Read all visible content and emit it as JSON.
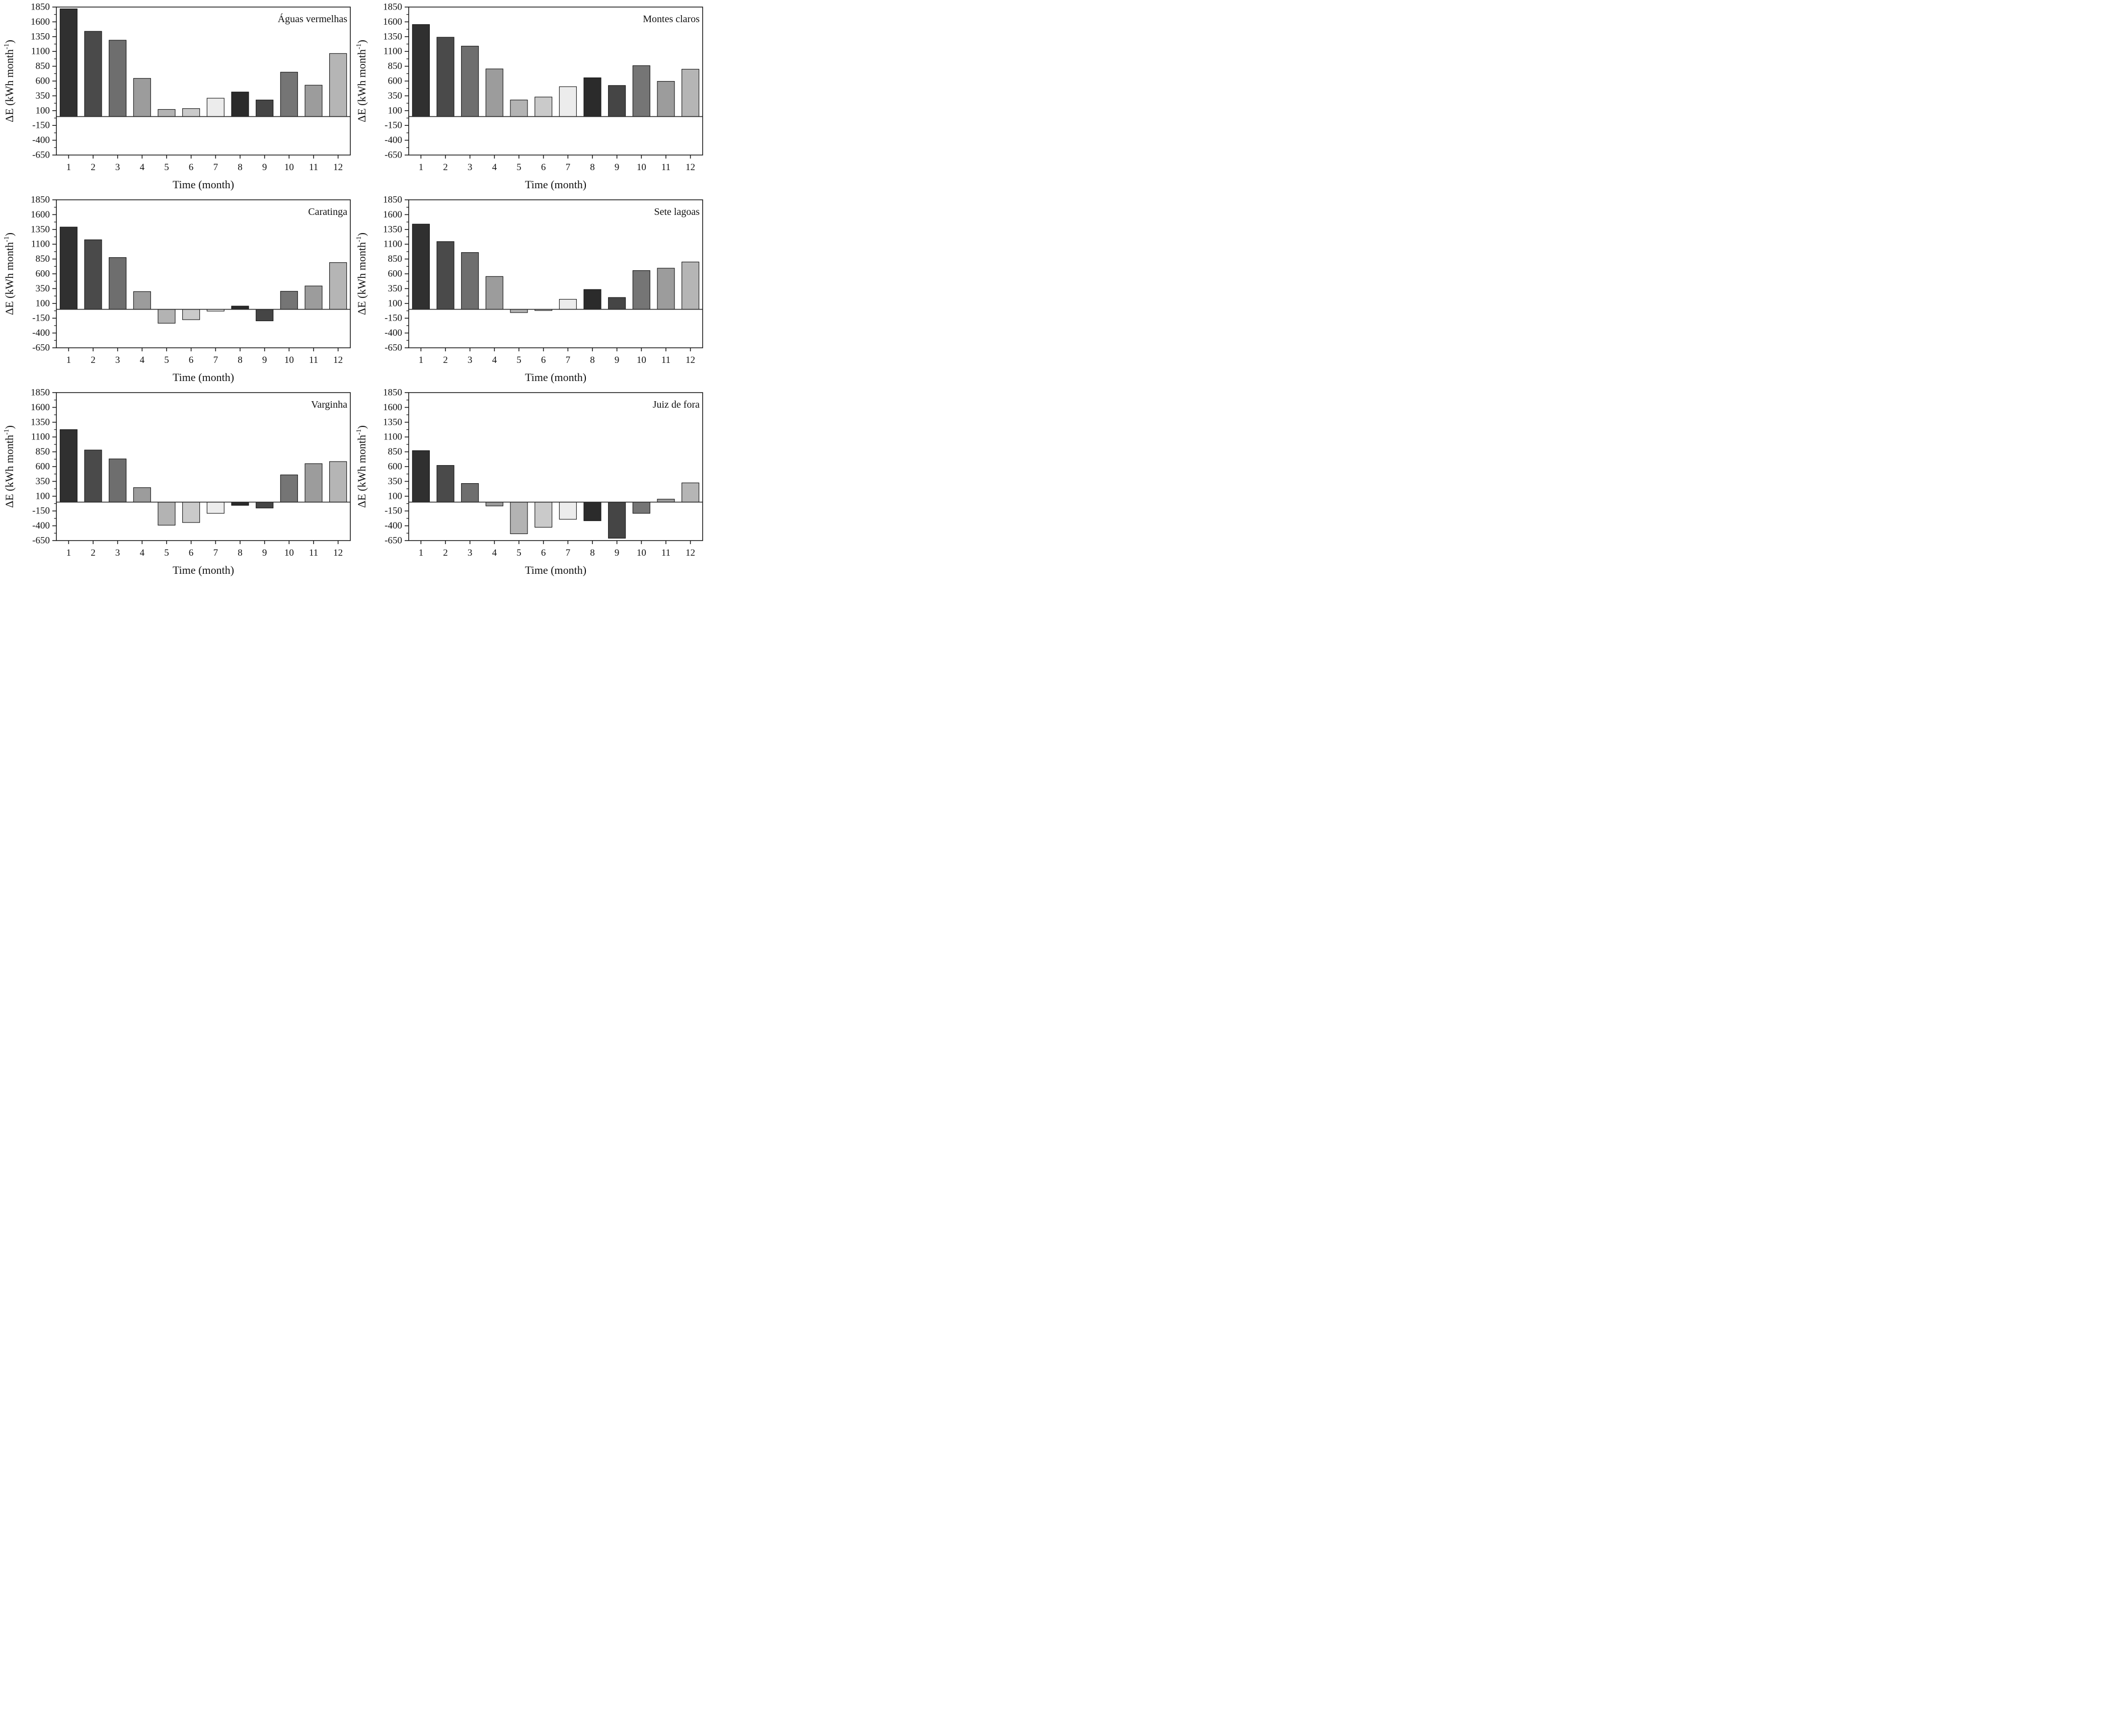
{
  "figure": {
    "background": "#ffffff",
    "text_color": "#111111",
    "axis_color": "#1a1a1a",
    "zero_line_color": "#2a2a2a",
    "bar_stroke_color": "#111111",
    "xlabel": "Time (month)",
    "ylabel": "ΔE (kWh month⁻¹)",
    "ylabel_parts": {
      "pre": "ΔE (kWh month",
      "sup": "-1",
      "post": ")"
    },
    "categories": [
      "1",
      "2",
      "3",
      "4",
      "5",
      "6",
      "7",
      "8",
      "9",
      "10",
      "11",
      "12"
    ],
    "yticks": [
      1850,
      1600,
      1350,
      1100,
      850,
      600,
      350,
      100,
      -150,
      -400,
      -650
    ],
    "y_minor_step": 125,
    "ylim": [
      -650,
      1850
    ],
    "bar_colors": [
      "#303030",
      "#4a4a4a",
      "#6e6e6e",
      "#9c9c9c",
      "#b3b3b3",
      "#cacaca",
      "#ececec",
      "#2b2b2b",
      "#454545",
      "#757575",
      "#9c9c9c",
      "#b5b5b5"
    ]
  },
  "chart_data": [
    {
      "type": "bar",
      "title": "Águas vermelhas",
      "categories": [
        "1",
        "2",
        "3",
        "4",
        "5",
        "6",
        "7",
        "8",
        "9",
        "10",
        "11",
        "12"
      ],
      "values": [
        1820,
        1440,
        1290,
        645,
        120,
        135,
        310,
        415,
        280,
        750,
        530,
        1065
      ],
      "xlabel": "Time (month)",
      "ylabel": "ΔE (kWh month⁻¹)",
      "ylim": [
        -650,
        1850
      ],
      "legend": "none",
      "grid": "off"
    },
    {
      "type": "bar",
      "title": "Montes claros",
      "categories": [
        "1",
        "2",
        "3",
        "4",
        "5",
        "6",
        "7",
        "8",
        "9",
        "10",
        "11",
        "12"
      ],
      "values": [
        1555,
        1340,
        1190,
        805,
        280,
        330,
        505,
        655,
        525,
        860,
        595,
        800
      ],
      "xlabel": "Time (month)",
      "ylabel": "ΔE (kWh month⁻¹)",
      "ylim": [
        -650,
        1850
      ],
      "legend": "none",
      "grid": "off"
    },
    {
      "type": "bar",
      "title": "Caratinga",
      "categories": [
        "1",
        "2",
        "3",
        "4",
        "5",
        "6",
        "7",
        "8",
        "9",
        "10",
        "11",
        "12"
      ],
      "values": [
        1390,
        1175,
        875,
        300,
        -235,
        -175,
        -30,
        55,
        -195,
        305,
        395,
        790
      ],
      "xlabel": "Time (month)",
      "ylabel": "ΔE (kWh month⁻¹)",
      "ylim": [
        -650,
        1850
      ],
      "legend": "none",
      "grid": "off"
    },
    {
      "type": "bar",
      "title": "Sete lagoas",
      "categories": [
        "1",
        "2",
        "3",
        "4",
        "5",
        "6",
        "7",
        "8",
        "9",
        "10",
        "11",
        "12"
      ],
      "values": [
        1440,
        1145,
        960,
        555,
        -55,
        -20,
        170,
        335,
        200,
        655,
        695,
        800
      ],
      "xlabel": "Time (month)",
      "ylabel": "ΔE (kWh month⁻¹)",
      "ylim": [
        -650,
        1850
      ],
      "legend": "none",
      "grid": "off"
    },
    {
      "type": "bar",
      "title": "Varginha",
      "categories": [
        "1",
        "2",
        "3",
        "4",
        "5",
        "6",
        "7",
        "8",
        "9",
        "10",
        "11",
        "12"
      ],
      "values": [
        1225,
        880,
        730,
        245,
        -390,
        -345,
        -190,
        -55,
        -100,
        460,
        650,
        685
      ],
      "xlabel": "Time (month)",
      "ylabel": "ΔE (kWh month⁻¹)",
      "ylim": [
        -650,
        1850
      ],
      "legend": "none",
      "grid": "off"
    },
    {
      "type": "bar",
      "title": "Juiz de fora",
      "categories": [
        "1",
        "2",
        "3",
        "4",
        "5",
        "6",
        "7",
        "8",
        "9",
        "10",
        "11",
        "12"
      ],
      "values": [
        870,
        620,
        315,
        -65,
        -535,
        -425,
        -290,
        -315,
        -610,
        -190,
        50,
        325
      ],
      "xlabel": "Time (month)",
      "ylabel": "ΔE (kWh month⁻¹)",
      "ylim": [
        -650,
        1850
      ],
      "legend": "none",
      "grid": "off"
    }
  ]
}
